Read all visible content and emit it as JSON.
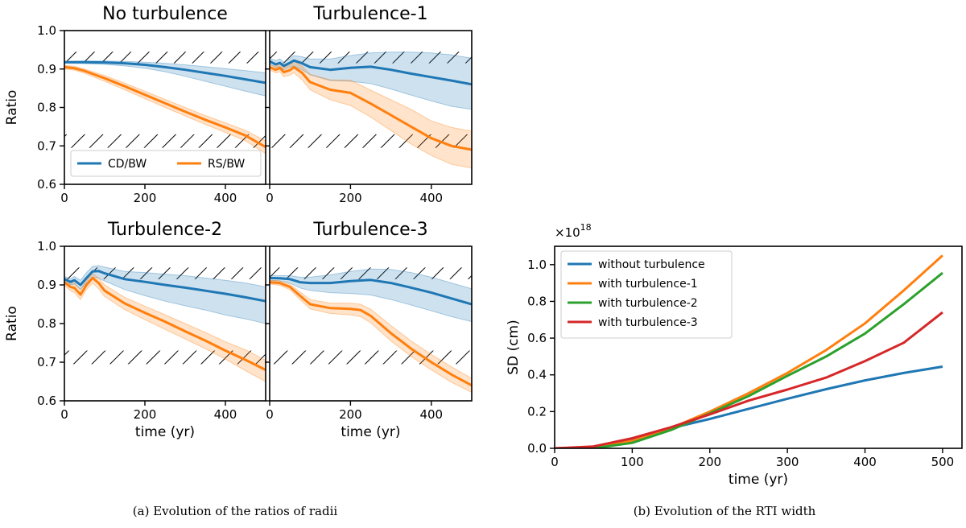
{
  "figure": {
    "caption_a": "(a)  Evolution of the ratios of radii",
    "caption_b": "(b)  Evolution of the RTI width"
  },
  "colors": {
    "cd": "#1f77b4",
    "rs": "#ff7f0e",
    "t2": "#2ca02c",
    "t3": "#d62728"
  },
  "chart_data": [
    {
      "type": "line",
      "title": "No turbulence",
      "xlabel": "",
      "ylabel": "Ratio",
      "xlim": [
        0,
        500
      ],
      "ylim": [
        0.6,
        1.0
      ],
      "xticks": [
        0,
        200,
        400
      ],
      "yticks": [
        0.6,
        0.7,
        0.8,
        0.9,
        1.0
      ],
      "ytick_labels": [
        "0.6",
        "0.7",
        "0.8",
        "0.9",
        "1.0"
      ],
      "hatch_bands": [
        [
          0.915,
          0.945
        ],
        [
          0.695,
          0.73
        ]
      ],
      "legend": {
        "placement": "lower-left",
        "entries": [
          "CD/BW",
          "RS/BW"
        ]
      },
      "series": [
        {
          "name": "CD/BW",
          "color": "#1f77b4",
          "x": [
            0,
            50,
            100,
            150,
            200,
            250,
            300,
            350,
            400,
            450,
            500
          ],
          "y": [
            0.918,
            0.918,
            0.917,
            0.915,
            0.911,
            0.905,
            0.898,
            0.89,
            0.882,
            0.873,
            0.864
          ],
          "band_low": [
            0.915,
            0.914,
            0.912,
            0.908,
            0.902,
            0.893,
            0.881,
            0.868,
            0.855,
            0.842,
            0.83
          ],
          "band_high": [
            0.92,
            0.921,
            0.921,
            0.92,
            0.918,
            0.915,
            0.911,
            0.906,
            0.901,
            0.896,
            0.89
          ]
        },
        {
          "name": "RS/BW",
          "color": "#ff7f0e",
          "x": [
            0,
            25,
            50,
            100,
            150,
            200,
            250,
            300,
            350,
            400,
            450,
            500
          ],
          "y": [
            0.905,
            0.902,
            0.895,
            0.876,
            0.855,
            0.833,
            0.811,
            0.789,
            0.768,
            0.748,
            0.727,
            0.697
          ],
          "band_low": [
            0.9,
            0.897,
            0.889,
            0.868,
            0.846,
            0.823,
            0.8,
            0.778,
            0.756,
            0.735,
            0.713,
            0.68
          ],
          "band_high": [
            0.91,
            0.907,
            0.9,
            0.883,
            0.863,
            0.842,
            0.821,
            0.8,
            0.779,
            0.76,
            0.74,
            0.713
          ]
        }
      ]
    },
    {
      "type": "line",
      "title": "Turbulence-1",
      "xlabel": "",
      "ylabel": "",
      "xlim": [
        0,
        500
      ],
      "ylim": [
        0.6,
        1.0
      ],
      "xticks": [
        0,
        200,
        400
      ],
      "yticks": [
        0.6,
        0.7,
        0.8,
        0.9,
        1.0
      ],
      "ytick_labels": [],
      "hatch_bands": [
        [
          0.915,
          0.945
        ],
        [
          0.695,
          0.73
        ]
      ],
      "series": [
        {
          "name": "CD/BW",
          "color": "#1f77b4",
          "x": [
            0,
            15,
            25,
            35,
            50,
            60,
            80,
            100,
            150,
            200,
            250,
            300,
            350,
            400,
            450,
            500
          ],
          "y": [
            0.92,
            0.912,
            0.916,
            0.908,
            0.916,
            0.922,
            0.915,
            0.905,
            0.898,
            0.903,
            0.906,
            0.898,
            0.888,
            0.879,
            0.87,
            0.86
          ],
          "band_low": [
            0.912,
            0.904,
            0.906,
            0.898,
            0.905,
            0.908,
            0.898,
            0.885,
            0.87,
            0.868,
            0.862,
            0.848,
            0.832,
            0.817,
            0.803,
            0.795
          ],
          "band_high": [
            0.928,
            0.922,
            0.926,
            0.918,
            0.927,
            0.935,
            0.932,
            0.926,
            0.926,
            0.935,
            0.942,
            0.944,
            0.944,
            0.942,
            0.937,
            0.928
          ]
        },
        {
          "name": "RS/BW",
          "color": "#ff7f0e",
          "x": [
            0,
            15,
            25,
            35,
            50,
            60,
            80,
            100,
            150,
            200,
            250,
            300,
            350,
            400,
            450,
            500
          ],
          "y": [
            0.905,
            0.898,
            0.903,
            0.892,
            0.897,
            0.905,
            0.89,
            0.866,
            0.846,
            0.838,
            0.81,
            0.78,
            0.75,
            0.72,
            0.7,
            0.69
          ],
          "band_low": [
            0.898,
            0.89,
            0.893,
            0.88,
            0.884,
            0.89,
            0.872,
            0.846,
            0.82,
            0.805,
            0.775,
            0.74,
            0.705,
            0.675,
            0.652,
            0.642
          ],
          "band_high": [
            0.912,
            0.906,
            0.913,
            0.904,
            0.91,
            0.92,
            0.908,
            0.886,
            0.872,
            0.871,
            0.845,
            0.82,
            0.795,
            0.765,
            0.748,
            0.738
          ]
        }
      ]
    },
    {
      "type": "line",
      "title": "Turbulence-2",
      "xlabel": "time (yr)",
      "ylabel": "Ratio",
      "xlim": [
        0,
        500
      ],
      "ylim": [
        0.6,
        1.0
      ],
      "xticks": [
        0,
        200,
        400
      ],
      "yticks": [
        0.6,
        0.7,
        0.8,
        0.9,
        1.0
      ],
      "ytick_labels": [
        "0.6",
        "0.7",
        "0.8",
        "0.9",
        "1.0"
      ],
      "hatch_bands": [
        [
          0.915,
          0.945
        ],
        [
          0.695,
          0.73
        ]
      ],
      "series": [
        {
          "name": "CD/BW",
          "color": "#1f77b4",
          "x": [
            0,
            15,
            25,
            40,
            55,
            70,
            85,
            100,
            150,
            200,
            250,
            300,
            350,
            400,
            450,
            500
          ],
          "y": [
            0.915,
            0.908,
            0.912,
            0.9,
            0.918,
            0.935,
            0.936,
            0.93,
            0.915,
            0.908,
            0.9,
            0.893,
            0.885,
            0.877,
            0.868,
            0.858
          ],
          "band_low": [
            0.908,
            0.9,
            0.902,
            0.888,
            0.905,
            0.92,
            0.918,
            0.91,
            0.888,
            0.872,
            0.858,
            0.846,
            0.835,
            0.822,
            0.812,
            0.8
          ],
          "band_high": [
            0.922,
            0.916,
            0.922,
            0.912,
            0.932,
            0.948,
            0.95,
            0.946,
            0.935,
            0.932,
            0.928,
            0.924,
            0.918,
            0.912,
            0.905,
            0.895
          ]
        },
        {
          "name": "RS/BW",
          "color": "#ff7f0e",
          "x": [
            0,
            15,
            25,
            40,
            55,
            70,
            85,
            100,
            150,
            200,
            250,
            300,
            350,
            400,
            450,
            500
          ],
          "y": [
            0.907,
            0.895,
            0.892,
            0.875,
            0.9,
            0.918,
            0.905,
            0.885,
            0.852,
            0.828,
            0.805,
            0.78,
            0.756,
            0.73,
            0.706,
            0.68
          ],
          "band_low": [
            0.9,
            0.885,
            0.88,
            0.862,
            0.888,
            0.905,
            0.89,
            0.87,
            0.836,
            0.81,
            0.785,
            0.76,
            0.735,
            0.708,
            0.678,
            0.65
          ],
          "band_high": [
            0.914,
            0.905,
            0.905,
            0.888,
            0.912,
            0.93,
            0.918,
            0.9,
            0.868,
            0.845,
            0.823,
            0.8,
            0.777,
            0.753,
            0.732,
            0.705
          ]
        }
      ]
    },
    {
      "type": "line",
      "title": "Turbulence-3",
      "xlabel": "time (yr)",
      "ylabel": "",
      "xlim": [
        0,
        500
      ],
      "ylim": [
        0.6,
        1.0
      ],
      "xticks": [
        0,
        200,
        400
      ],
      "yticks": [
        0.6,
        0.7,
        0.8,
        0.9,
        1.0
      ],
      "ytick_labels": [],
      "hatch_bands": [
        [
          0.915,
          0.945
        ],
        [
          0.695,
          0.73
        ]
      ],
      "series": [
        {
          "name": "CD/BW",
          "color": "#1f77b4",
          "x": [
            0,
            25,
            50,
            75,
            100,
            150,
            200,
            250,
            300,
            350,
            400,
            450,
            500
          ],
          "y": [
            0.918,
            0.917,
            0.915,
            0.907,
            0.905,
            0.905,
            0.91,
            0.913,
            0.905,
            0.893,
            0.88,
            0.865,
            0.85
          ],
          "band_low": [
            0.912,
            0.91,
            0.905,
            0.892,
            0.886,
            0.88,
            0.878,
            0.874,
            0.862,
            0.848,
            0.833,
            0.818,
            0.805
          ],
          "band_high": [
            0.924,
            0.924,
            0.924,
            0.92,
            0.92,
            0.926,
            0.935,
            0.941,
            0.94,
            0.932,
            0.92,
            0.905,
            0.89
          ]
        },
        {
          "name": "RS/BW",
          "color": "#ff7f0e",
          "x": [
            0,
            25,
            50,
            75,
            100,
            150,
            200,
            225,
            250,
            300,
            350,
            400,
            450,
            500
          ],
          "y": [
            0.907,
            0.905,
            0.895,
            0.872,
            0.85,
            0.84,
            0.838,
            0.835,
            0.82,
            0.775,
            0.735,
            0.7,
            0.668,
            0.64
          ],
          "band_low": [
            0.902,
            0.899,
            0.888,
            0.862,
            0.838,
            0.826,
            0.822,
            0.818,
            0.802,
            0.755,
            0.715,
            0.68,
            0.648,
            0.622
          ],
          "band_high": [
            0.912,
            0.911,
            0.902,
            0.882,
            0.862,
            0.853,
            0.853,
            0.85,
            0.837,
            0.795,
            0.755,
            0.72,
            0.688,
            0.658
          ]
        }
      ]
    },
    {
      "type": "line",
      "title": "",
      "xlabel": "time (yr)",
      "ylabel": "SD (cm)",
      "scale_label": "×10",
      "scale_exp": "18",
      "xlim": [
        0,
        525
      ],
      "ylim": [
        0,
        1.1
      ],
      "xticks": [
        0,
        100,
        200,
        300,
        400,
        500
      ],
      "yticks": [
        0.0,
        0.2,
        0.4,
        0.6,
        0.8,
        1.0
      ],
      "ytick_labels": [
        "0.0",
        "0.2",
        "0.4",
        "0.6",
        "0.8",
        "1.0"
      ],
      "legend": {
        "placement": "top-left",
        "entries": [
          "without turbulence",
          "with turbulence-1",
          "with turbulence-2",
          "with turbulence-3"
        ]
      },
      "series": [
        {
          "name": "without turbulence",
          "color": "#1f77b4",
          "x": [
            0,
            50,
            100,
            150,
            200,
            250,
            300,
            350,
            400,
            450,
            500
          ],
          "y": [
            0.0,
            0.005,
            0.05,
            0.11,
            0.16,
            0.215,
            0.27,
            0.322,
            0.37,
            0.41,
            0.445
          ]
        },
        {
          "name": "with turbulence-1",
          "color": "#ff7f0e",
          "x": [
            0,
            50,
            100,
            150,
            200,
            250,
            300,
            350,
            400,
            450,
            500
          ],
          "y": [
            0.0,
            0.005,
            0.04,
            0.11,
            0.2,
            0.3,
            0.41,
            0.535,
            0.68,
            0.86,
            1.05
          ]
        },
        {
          "name": "with turbulence-2",
          "color": "#2ca02c",
          "x": [
            0,
            50,
            100,
            150,
            200,
            250,
            300,
            350,
            400,
            450,
            500
          ],
          "y": [
            0.0,
            0.0,
            0.03,
            0.1,
            0.19,
            0.285,
            0.395,
            0.5,
            0.625,
            0.785,
            0.955
          ]
        },
        {
          "name": "with turbulence-3",
          "color": "#d62728",
          "x": [
            0,
            50,
            100,
            150,
            200,
            250,
            300,
            350,
            400,
            450,
            500
          ],
          "y": [
            0.0,
            0.01,
            0.055,
            0.115,
            0.185,
            0.26,
            0.32,
            0.385,
            0.475,
            0.575,
            0.74
          ]
        }
      ]
    }
  ]
}
